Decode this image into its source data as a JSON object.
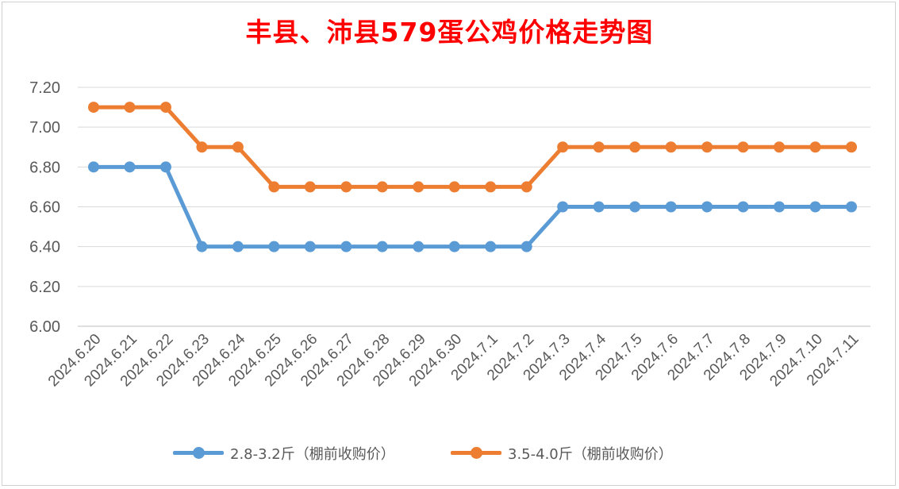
{
  "chart_data": {
    "type": "line",
    "title": "丰县、沛县579蛋公鸡价格走势图",
    "categories": [
      "2024.6.20",
      "2024.6.21",
      "2024.6.22",
      "2024.6.23",
      "2024.6.24",
      "2024.6.25",
      "2024.6.26",
      "2024.6.27",
      "2024.6.28",
      "2024.6.29",
      "2024.6.30",
      "2024.7.1",
      "2024.7.2",
      "2024.7.3",
      "2024.7.4",
      "2024.7.5",
      "2024.7.6",
      "2024.7.7",
      "2024.7.8",
      "2024.7.9",
      "2024.7.10",
      "2024.7.11"
    ],
    "series": [
      {
        "name": "2.8-3.2斤（棚前收购价）",
        "color": "#5b9bd5",
        "values": [
          6.8,
          6.8,
          6.8,
          6.4,
          6.4,
          6.4,
          6.4,
          6.4,
          6.4,
          6.4,
          6.4,
          6.4,
          6.4,
          6.6,
          6.6,
          6.6,
          6.6,
          6.6,
          6.6,
          6.6,
          6.6,
          6.6
        ]
      },
      {
        "name": "3.5-4.0斤（棚前收购价）",
        "color": "#ed7d31",
        "values": [
          7.1,
          7.1,
          7.1,
          6.9,
          6.9,
          6.7,
          6.7,
          6.7,
          6.7,
          6.7,
          6.7,
          6.7,
          6.7,
          6.9,
          6.9,
          6.9,
          6.9,
          6.9,
          6.9,
          6.9,
          6.9,
          6.9
        ]
      }
    ],
    "ylim": [
      6.0,
      7.2
    ],
    "yticks": [
      "6.00",
      "6.20",
      "6.40",
      "6.60",
      "6.80",
      "7.00",
      "7.20"
    ],
    "xlabel": "",
    "ylabel": "",
    "grid": true,
    "legend": "bottom"
  }
}
